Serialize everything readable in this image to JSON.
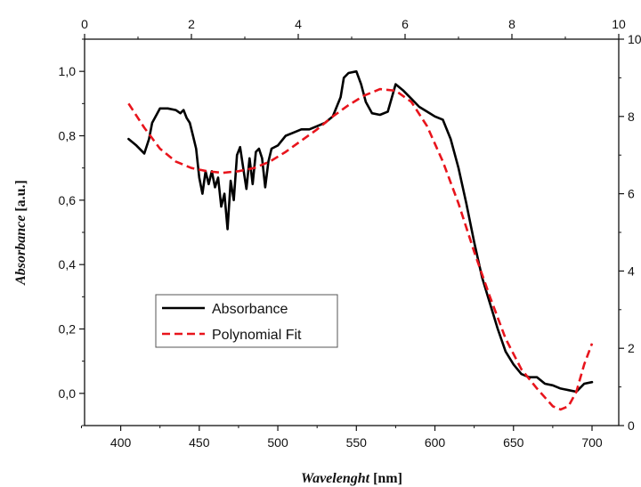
{
  "chart_data": {
    "type": "line",
    "xlabel": {
      "italic": "Wavelenght",
      "unit": " [nm]"
    },
    "ylabel": {
      "italic": "Absorbance",
      "unit": " [a.u.]"
    },
    "xlim": [
      377,
      717
    ],
    "ylim": [
      -0.1,
      1.1
    ],
    "x_ticks": [
      400,
      450,
      500,
      550,
      600,
      650,
      700
    ],
    "y_ticks": [
      0.0,
      0.2,
      0.4,
      0.6,
      0.8,
      1.0
    ],
    "y_tick_labels": [
      "0,0",
      "0,2",
      "0,4",
      "0,6",
      "0,8",
      "1,0"
    ],
    "top_axis": {
      "range": [
        0,
        10
      ],
      "ticks": [
        0,
        2,
        4,
        6,
        8,
        10
      ]
    },
    "right_axis": {
      "range": [
        0,
        10
      ],
      "ticks": [
        0,
        2,
        4,
        6,
        8,
        10
      ]
    },
    "grid": false,
    "legend": {
      "placement": "lower-left"
    },
    "series": [
      {
        "name": "Absorbance",
        "color": "#000000",
        "style": "solid",
        "x": [
          405,
          410,
          415,
          418,
          420,
          425,
          430,
          435,
          438,
          440,
          442,
          444,
          446,
          448,
          450,
          452,
          454,
          456,
          458,
          460,
          462,
          464,
          466,
          468,
          470,
          472,
          474,
          476,
          478,
          480,
          482,
          484,
          486,
          488,
          490,
          492,
          494,
          496,
          500,
          505,
          510,
          515,
          520,
          525,
          530,
          535,
          540,
          542,
          545,
          550,
          553,
          556,
          560,
          565,
          570,
          575,
          580,
          585,
          590,
          595,
          600,
          605,
          610,
          615,
          620,
          625,
          630,
          635,
          640,
          645,
          650,
          655,
          660,
          665,
          670,
          675,
          680,
          685,
          690,
          695,
          700
        ],
        "y": [
          0.79,
          0.77,
          0.745,
          0.79,
          0.84,
          0.885,
          0.885,
          0.88,
          0.87,
          0.88,
          0.855,
          0.84,
          0.8,
          0.76,
          0.67,
          0.62,
          0.69,
          0.65,
          0.69,
          0.64,
          0.67,
          0.58,
          0.62,
          0.51,
          0.66,
          0.6,
          0.74,
          0.765,
          0.7,
          0.635,
          0.73,
          0.65,
          0.75,
          0.76,
          0.73,
          0.64,
          0.72,
          0.76,
          0.77,
          0.8,
          0.81,
          0.82,
          0.82,
          0.83,
          0.84,
          0.86,
          0.92,
          0.98,
          0.995,
          1.0,
          0.96,
          0.905,
          0.87,
          0.865,
          0.875,
          0.96,
          0.94,
          0.915,
          0.89,
          0.875,
          0.86,
          0.85,
          0.79,
          0.7,
          0.59,
          0.47,
          0.36,
          0.28,
          0.2,
          0.13,
          0.09,
          0.06,
          0.05,
          0.05,
          0.03,
          0.025,
          0.015,
          0.01,
          0.005,
          0.03,
          0.035
        ]
      },
      {
        "name": "Polynomial Fit",
        "color": "#e8141c",
        "style": "dashed",
        "x": [
          405,
          415,
          425,
          435,
          445,
          455,
          465,
          475,
          485,
          495,
          505,
          515,
          525,
          535,
          545,
          555,
          565,
          575,
          585,
          595,
          605,
          615,
          625,
          635,
          645,
          655,
          665,
          675,
          680,
          685,
          690,
          695,
          700
        ],
        "y": [
          0.9,
          0.825,
          0.76,
          0.72,
          0.7,
          0.69,
          0.685,
          0.69,
          0.7,
          0.72,
          0.75,
          0.785,
          0.82,
          0.86,
          0.895,
          0.925,
          0.945,
          0.94,
          0.905,
          0.83,
          0.72,
          0.59,
          0.44,
          0.3,
          0.17,
          0.075,
          0.015,
          -0.04,
          -0.05,
          -0.04,
          0.005,
          0.09,
          0.155
        ]
      }
    ]
  }
}
